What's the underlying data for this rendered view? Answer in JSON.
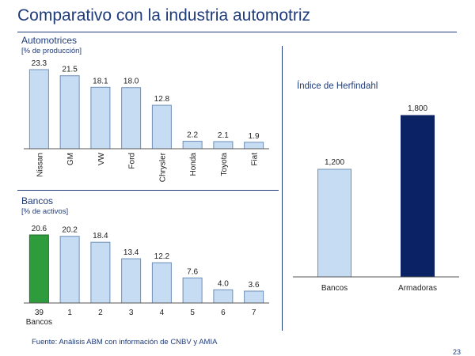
{
  "page": {
    "title": "Comparativo con la industria automotriz",
    "source": "Fuente: Análisis ABM con información de CNBV y AMIA",
    "page_number": "23"
  },
  "colors": {
    "title_blue": "#1f3b7a",
    "bar_light_blue": "#c5dcf2",
    "bar_outline": "#6f8fb8",
    "highlight_green": "#2e9b3c",
    "dark_navy": "#0b2265"
  },
  "chart_data": [
    {
      "type": "bar",
      "title": "Automotrices",
      "ylabel": "[% de producción]",
      "categories": [
        "Nissan",
        "GM",
        "VW",
        "Ford",
        "Chrysler",
        "Honda",
        "Toyota",
        "Fiat"
      ],
      "values": [
        23.3,
        21.5,
        18.1,
        18.0,
        12.8,
        2.2,
        2.1,
        1.9
      ],
      "value_labels": [
        "23.3",
        "21.5",
        "18.1",
        "18.0",
        "12.8",
        "2.2",
        "2.1",
        "1.9"
      ],
      "ylim": [
        0,
        25
      ],
      "grid": false,
      "x_tick_rotation": "vertical"
    },
    {
      "type": "bar",
      "title": "Bancos",
      "ylabel": "[% de activos]",
      "categories": [
        "39\nBancos",
        "1",
        "2",
        "3",
        "4",
        "5",
        "6",
        "7"
      ],
      "category_lines": [
        [
          "39",
          "Bancos"
        ],
        [
          "1"
        ],
        [
          "2"
        ],
        [
          "3"
        ],
        [
          "4"
        ],
        [
          "5"
        ],
        [
          "6"
        ],
        [
          "7"
        ]
      ],
      "values": [
        20.6,
        20.2,
        18.4,
        13.4,
        12.2,
        7.6,
        4.0,
        3.6
      ],
      "value_labels": [
        "20.6",
        "20.2",
        "18.4",
        "13.4",
        "12.2",
        "7.6",
        "4.0",
        "3.6"
      ],
      "highlight_index": 0,
      "ylim": [
        0,
        22
      ],
      "grid": false
    },
    {
      "type": "bar",
      "title": "Índice de Herfindahl",
      "categories": [
        "Bancos",
        "Armadoras"
      ],
      "values": [
        1200,
        1800
      ],
      "value_labels": [
        "1,200",
        "1,800"
      ],
      "ylim": [
        0,
        2000
      ],
      "grid": false
    }
  ]
}
